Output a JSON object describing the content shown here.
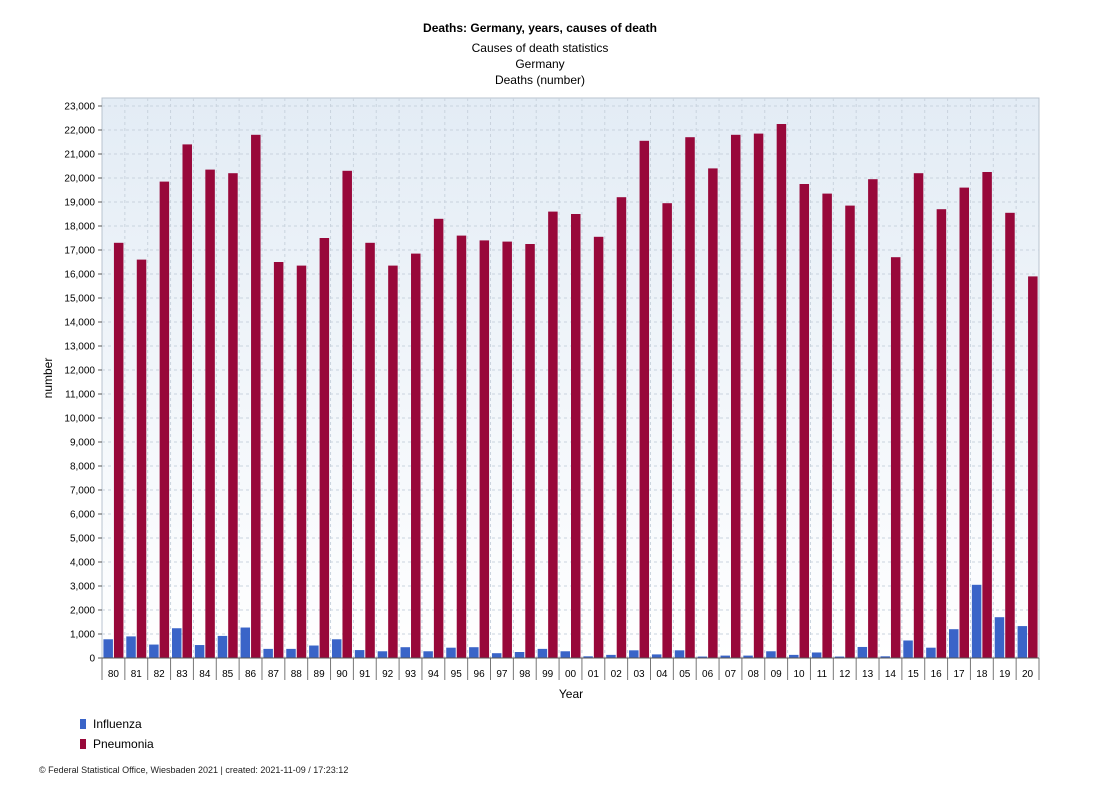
{
  "chart_data": {
    "type": "bar",
    "title": "Deaths: Germany, years, causes of death",
    "subtitles": [
      "Causes of death statistics",
      "Germany",
      "Deaths (number)"
    ],
    "xlabel": "Year",
    "ylabel": "number",
    "ylim": [
      0,
      23000
    ],
    "ytick_step": 1000,
    "grid": true,
    "legend_position": "bottom-left",
    "categories": [
      "80",
      "81",
      "82",
      "83",
      "84",
      "85",
      "86",
      "87",
      "88",
      "89",
      "90",
      "91",
      "92",
      "93",
      "94",
      "95",
      "96",
      "97",
      "98",
      "99",
      "00",
      "01",
      "02",
      "03",
      "04",
      "05",
      "06",
      "07",
      "08",
      "09",
      "10",
      "11",
      "12",
      "13",
      "14",
      "15",
      "16",
      "17",
      "18",
      "19",
      "20"
    ],
    "series": [
      {
        "name": "Influenza",
        "color": "#3a64c8",
        "values": [
          780,
          900,
          560,
          1240,
          540,
          920,
          1270,
          380,
          380,
          520,
          780,
          330,
          280,
          450,
          280,
          430,
          450,
          200,
          250,
          380,
          280,
          70,
          130,
          320,
          150,
          320,
          60,
          100,
          100,
          280,
          130,
          230,
          60,
          460,
          70,
          730,
          430,
          1200,
          3050,
          1700,
          1330
        ]
      },
      {
        "name": "Pneumonia",
        "color": "#98083a",
        "values": [
          17300,
          16600,
          19850,
          21400,
          20350,
          20200,
          21800,
          16500,
          16350,
          17500,
          20300,
          17300,
          16350,
          16850,
          18300,
          17600,
          17400,
          17350,
          17250,
          18600,
          18500,
          17550,
          19200,
          21550,
          18950,
          21700,
          20400,
          21800,
          21850,
          22250,
          19750,
          19350,
          18850,
          19950,
          16700,
          20200,
          18700,
          19600,
          20250,
          18550,
          15900
        ]
      }
    ]
  },
  "footer": "© Federal Statistical Office, Wiesbaden 2021 | created: 2021-11-09 / 17:23:12"
}
